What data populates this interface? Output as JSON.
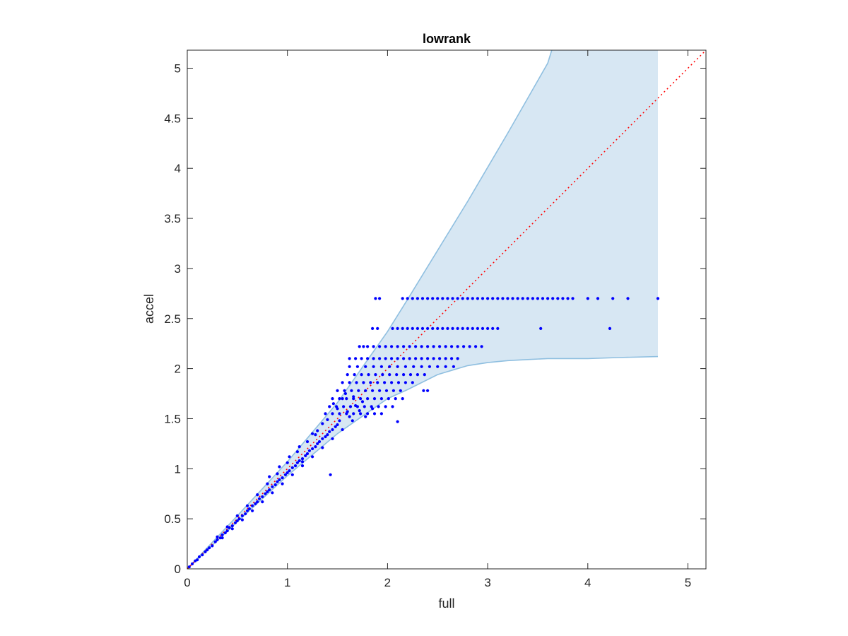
{
  "chart_data": {
    "type": "scatter",
    "title": "lowrank",
    "xlabel": "full",
    "ylabel": "accel",
    "xlim": [
      0,
      5.18
    ],
    "ylim": [
      0,
      5.18
    ],
    "xticks": [
      0,
      1,
      2,
      3,
      4,
      5
    ],
    "xtick_labels": [
      "0",
      "1",
      "2",
      "3",
      "4",
      "5"
    ],
    "yticks": [
      0,
      0.5,
      1,
      1.5,
      2,
      2.5,
      3,
      3.5,
      4,
      4.5,
      5
    ],
    "ytick_labels": [
      "0",
      "0.5",
      "1",
      "1.5",
      "2",
      "2.5",
      "3",
      "3.5",
      "4",
      "4.5",
      "5"
    ],
    "grid": false,
    "box": true,
    "colors": {
      "points": "#0000ff",
      "band_fill": "#d7e7f3",
      "band_edge": "#8fbfe0",
      "reference_line": "#ff0000",
      "axes": "#262626"
    },
    "confidence_band": {
      "x": [
        0,
        0.5,
        1,
        1.5,
        2,
        2.2,
        2.5,
        2.8,
        3.0,
        3.2,
        3.4,
        3.6,
        3.64,
        4.0,
        4.3,
        4.7
      ],
      "upper": [
        0,
        0.53,
        1.07,
        1.66,
        2.37,
        2.69,
        3.18,
        3.67,
        4.01,
        4.35,
        4.7,
        5.05,
        5.18,
        5.18,
        5.18,
        5.18
      ],
      "lower": [
        0,
        0.47,
        0.93,
        1.35,
        1.7,
        1.79,
        1.94,
        2.03,
        2.06,
        2.08,
        2.09,
        2.1,
        2.1,
        2.1,
        2.11,
        2.12
      ]
    },
    "reference_line": {
      "x": [
        0,
        5.18
      ],
      "y": [
        0,
        5.18
      ],
      "style": "dotted"
    },
    "series": [
      {
        "type": "scatter",
        "points": [
          [
            0.02,
            0.02
          ],
          [
            0.05,
            0.05
          ],
          [
            0.08,
            0.08
          ],
          [
            0.1,
            0.09
          ],
          [
            0.12,
            0.12
          ],
          [
            0.15,
            0.14
          ],
          [
            0.18,
            0.17
          ],
          [
            0.2,
            0.19
          ],
          [
            0.22,
            0.21
          ],
          [
            0.25,
            0.23
          ],
          [
            0.28,
            0.27
          ],
          [
            0.3,
            0.29
          ],
          [
            0.33,
            0.31
          ],
          [
            0.35,
            0.34
          ],
          [
            0.38,
            0.36
          ],
          [
            0.4,
            0.38
          ],
          [
            0.42,
            0.41
          ],
          [
            0.45,
            0.43
          ],
          [
            0.48,
            0.46
          ],
          [
            0.5,
            0.48
          ],
          [
            0.52,
            0.5
          ],
          [
            0.55,
            0.53
          ],
          [
            0.58,
            0.55
          ],
          [
            0.6,
            0.58
          ],
          [
            0.62,
            0.6
          ],
          [
            0.65,
            0.63
          ],
          [
            0.68,
            0.65
          ],
          [
            0.7,
            0.67
          ],
          [
            0.72,
            0.7
          ],
          [
            0.75,
            0.72
          ],
          [
            0.78,
            0.75
          ],
          [
            0.8,
            0.77
          ],
          [
            0.82,
            0.79
          ],
          [
            0.85,
            0.82
          ],
          [
            0.88,
            0.84
          ],
          [
            0.9,
            0.87
          ],
          [
            0.92,
            0.89
          ],
          [
            0.95,
            0.91
          ],
          [
            0.98,
            0.94
          ],
          [
            1.0,
            0.96
          ],
          [
            1.02,
            0.98
          ],
          [
            1.05,
            1.01
          ],
          [
            1.08,
            1.03
          ],
          [
            1.1,
            1.06
          ],
          [
            1.12,
            1.08
          ],
          [
            1.15,
            1.1
          ],
          [
            1.18,
            1.13
          ],
          [
            1.2,
            1.15
          ],
          [
            1.22,
            1.18
          ],
          [
            1.25,
            1.2
          ],
          [
            1.28,
            1.22
          ],
          [
            1.3,
            1.25
          ],
          [
            1.32,
            1.27
          ],
          [
            1.35,
            1.3
          ],
          [
            1.38,
            1.32
          ],
          [
            1.4,
            1.34
          ],
          [
            1.42,
            1.37
          ],
          [
            1.45,
            1.39
          ],
          [
            1.48,
            1.42
          ],
          [
            1.5,
            1.44
          ],
          [
            0.3,
            0.32
          ],
          [
            0.4,
            0.42
          ],
          [
            0.5,
            0.53
          ],
          [
            0.6,
            0.63
          ],
          [
            0.7,
            0.74
          ],
          [
            0.8,
            0.85
          ],
          [
            0.9,
            0.95
          ],
          [
            1.0,
            1.06
          ],
          [
            1.1,
            1.17
          ],
          [
            1.2,
            1.27
          ],
          [
            1.3,
            1.38
          ],
          [
            1.4,
            1.49
          ],
          [
            1.5,
            1.6
          ],
          [
            0.35,
            0.31
          ],
          [
            0.45,
            0.4
          ],
          [
            0.55,
            0.49
          ],
          [
            0.65,
            0.58
          ],
          [
            0.75,
            0.67
          ],
          [
            0.85,
            0.76
          ],
          [
            0.95,
            0.85
          ],
          [
            1.05,
            0.94
          ],
          [
            1.15,
            1.03
          ],
          [
            1.25,
            1.12
          ],
          [
            1.35,
            1.21
          ],
          [
            1.45,
            1.3
          ],
          [
            1.55,
            1.39
          ],
          [
            1.65,
            1.48
          ],
          [
            1.43,
            0.94
          ],
          [
            1.15,
            1.07
          ],
          [
            1.28,
            1.34
          ],
          [
            1.46,
            1.65
          ],
          [
            1.55,
            1.7
          ],
          [
            1.6,
            1.57
          ],
          [
            1.52,
            1.48
          ],
          [
            1.62,
            1.52
          ],
          [
            1.68,
            1.63
          ],
          [
            1.72,
            1.58
          ],
          [
            1.75,
            1.67
          ],
          [
            1.58,
            1.75
          ],
          [
            1.66,
            1.72
          ],
          [
            1.85,
            1.6
          ],
          [
            1.78,
            1.52
          ],
          [
            2.1,
            1.47
          ],
          [
            2.4,
            1.78
          ],
          [
            1.35,
            1.45
          ],
          [
            1.25,
            1.35
          ],
          [
            1.12,
            1.22
          ],
          [
            1.02,
            1.12
          ],
          [
            0.92,
            1.02
          ],
          [
            0.82,
            0.92
          ]
        ],
        "rows": [
          {
            "y": 2.7,
            "x": [
              1.88,
              1.92,
              2.15,
              2.2,
              2.25,
              2.3,
              2.35,
              2.4,
              2.45,
              2.5,
              2.55,
              2.6,
              2.65,
              2.7,
              2.75,
              2.8,
              2.85,
              2.9,
              2.95,
              3.0,
              3.05,
              3.1,
              3.15,
              3.2,
              3.25,
              3.3,
              3.35,
              3.4,
              3.45,
              3.5,
              3.55,
              3.6,
              3.65,
              3.7,
              3.75,
              3.8,
              3.85,
              4.0,
              4.1,
              4.25,
              4.4,
              4.7
            ]
          },
          {
            "y": 2.4,
            "x": [
              1.85,
              1.9,
              2.05,
              2.1,
              2.15,
              2.2,
              2.25,
              2.3,
              2.35,
              2.4,
              2.45,
              2.5,
              2.55,
              2.6,
              2.65,
              2.7,
              2.75,
              2.8,
              2.85,
              2.9,
              2.95,
              3.0,
              3.05,
              3.1,
              3.53,
              4.22
            ]
          },
          {
            "y": 2.22,
            "x": [
              1.72,
              1.76,
              1.8,
              1.86,
              1.92,
              1.98,
              2.04,
              2.1,
              2.16,
              2.22,
              2.28,
              2.34,
              2.4,
              2.46,
              2.52,
              2.58,
              2.64,
              2.7,
              2.76,
              2.82,
              2.88,
              2.94
            ]
          },
          {
            "y": 2.1,
            "x": [
              1.62,
              1.68,
              1.74,
              1.8,
              1.86,
              1.92,
              1.98,
              2.04,
              2.1,
              2.16,
              2.22,
              2.28,
              2.34,
              2.4,
              2.46,
              2.52,
              2.58,
              2.64,
              2.7
            ]
          },
          {
            "y": 2.02,
            "x": [
              1.62,
              1.7,
              1.78,
              1.86,
              1.94,
              2.02,
              2.1,
              2.18,
              2.26,
              2.34,
              2.42,
              2.5,
              2.58,
              2.66
            ]
          },
          {
            "y": 1.94,
            "x": [
              1.6,
              1.67,
              1.74,
              1.81,
              1.88,
              1.95,
              2.02,
              2.09,
              2.16,
              2.23,
              2.3,
              2.37
            ]
          },
          {
            "y": 1.86,
            "x": [
              1.55,
              1.62,
              1.69,
              1.76,
              1.83,
              1.9,
              1.97,
              2.04,
              2.11,
              2.18,
              2.25
            ]
          },
          {
            "y": 1.78,
            "x": [
              1.5,
              1.57,
              1.64,
              1.71,
              1.78,
              1.85,
              1.92,
              1.99,
              2.06,
              2.13,
              2.36
            ]
          },
          {
            "y": 1.7,
            "x": [
              1.45,
              1.52,
              1.59,
              1.66,
              1.73,
              1.8,
              1.87,
              1.94,
              2.01,
              2.08,
              2.15
            ]
          },
          {
            "y": 1.62,
            "x": [
              1.42,
              1.49,
              1.56,
              1.63,
              1.7,
              1.77,
              1.84,
              1.91,
              1.98,
              2.05
            ]
          },
          {
            "y": 1.55,
            "x": [
              1.38,
              1.45,
              1.52,
              1.59,
              1.66,
              1.73,
              1.8,
              1.87,
              1.94
            ]
          }
        ]
      }
    ]
  }
}
